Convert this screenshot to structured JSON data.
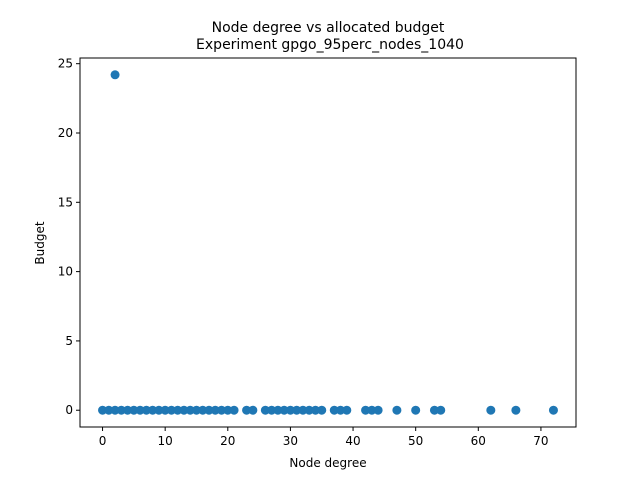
{
  "chart_data": {
    "type": "scatter",
    "title": "Node degree vs allocated budget",
    "subtitle": "Experiment gpgo_95perc_nodes_1040",
    "xlabel": "Node degree",
    "ylabel": "Budget",
    "xlim": [
      -3.6,
      75.6
    ],
    "ylim": [
      -1.21,
      25.41
    ],
    "xticks": [
      0,
      10,
      20,
      30,
      40,
      50,
      60,
      70
    ],
    "yticks": [
      0,
      5,
      10,
      15,
      20,
      25
    ],
    "grid": false,
    "marker_color": "#1f77b4",
    "points": [
      {
        "x": 2,
        "y": 24.2
      },
      {
        "x": 0,
        "y": 0
      },
      {
        "x": 1,
        "y": 0
      },
      {
        "x": 2,
        "y": 0
      },
      {
        "x": 3,
        "y": 0
      },
      {
        "x": 4,
        "y": 0
      },
      {
        "x": 5,
        "y": 0
      },
      {
        "x": 6,
        "y": 0
      },
      {
        "x": 7,
        "y": 0
      },
      {
        "x": 8,
        "y": 0
      },
      {
        "x": 9,
        "y": 0
      },
      {
        "x": 10,
        "y": 0
      },
      {
        "x": 11,
        "y": 0
      },
      {
        "x": 12,
        "y": 0
      },
      {
        "x": 13,
        "y": 0
      },
      {
        "x": 14,
        "y": 0
      },
      {
        "x": 15,
        "y": 0
      },
      {
        "x": 16,
        "y": 0
      },
      {
        "x": 17,
        "y": 0
      },
      {
        "x": 18,
        "y": 0
      },
      {
        "x": 19,
        "y": 0
      },
      {
        "x": 20,
        "y": 0
      },
      {
        "x": 21,
        "y": 0
      },
      {
        "x": 23,
        "y": 0
      },
      {
        "x": 24,
        "y": 0
      },
      {
        "x": 26,
        "y": 0
      },
      {
        "x": 27,
        "y": 0
      },
      {
        "x": 28,
        "y": 0
      },
      {
        "x": 29,
        "y": 0
      },
      {
        "x": 30,
        "y": 0
      },
      {
        "x": 31,
        "y": 0
      },
      {
        "x": 32,
        "y": 0
      },
      {
        "x": 33,
        "y": 0
      },
      {
        "x": 34,
        "y": 0
      },
      {
        "x": 35,
        "y": 0
      },
      {
        "x": 37,
        "y": 0
      },
      {
        "x": 38,
        "y": 0
      },
      {
        "x": 39,
        "y": 0
      },
      {
        "x": 42,
        "y": 0
      },
      {
        "x": 43,
        "y": 0
      },
      {
        "x": 44,
        "y": 0
      },
      {
        "x": 47,
        "y": 0
      },
      {
        "x": 50,
        "y": 0
      },
      {
        "x": 53,
        "y": 0
      },
      {
        "x": 54,
        "y": 0
      },
      {
        "x": 62,
        "y": 0
      },
      {
        "x": 66,
        "y": 0
      },
      {
        "x": 72,
        "y": 0
      }
    ]
  }
}
